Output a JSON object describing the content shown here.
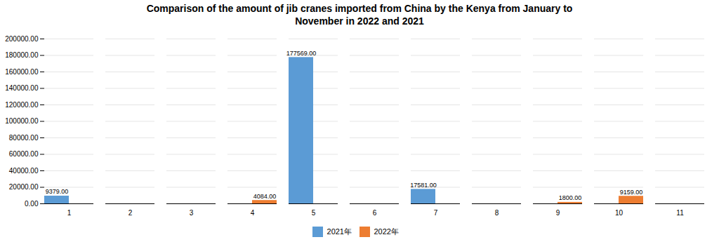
{
  "chart_data": {
    "type": "bar",
    "title": "Comparison of the amount of jib cranes imported from China by the Kenya from January to\nNovember in 2022 and 2021",
    "categories": [
      "1",
      "2",
      "3",
      "4",
      "5",
      "6",
      "7",
      "8",
      "9",
      "10",
      "11"
    ],
    "series": [
      {
        "name": "2021年",
        "color": "#5B9BD5",
        "values": [
          9379.0,
          0,
          0,
          0,
          177569.0,
          0,
          17581.0,
          0,
          0,
          0,
          0
        ],
        "value_labels": [
          "9379.00",
          null,
          null,
          null,
          "177569.00",
          null,
          "17581.00",
          null,
          null,
          null,
          null
        ]
      },
      {
        "name": "2022年",
        "color": "#ED7D31",
        "values": [
          0,
          0,
          0,
          4084.0,
          0,
          0,
          0,
          0,
          1800.0,
          9159.0,
          0
        ],
        "value_labels": [
          null,
          null,
          null,
          "4084.00",
          null,
          null,
          null,
          null,
          "1800.00",
          "9159.00",
          null
        ]
      }
    ],
    "ylim": [
      0,
      200000
    ],
    "yticks": [
      {
        "value": 0,
        "label": "0.00"
      },
      {
        "value": 20000,
        "label": "20000.00"
      },
      {
        "value": 40000,
        "label": "40000.00"
      },
      {
        "value": 60000,
        "label": "60000.00"
      },
      {
        "value": 80000,
        "label": "80000.00"
      },
      {
        "value": 100000,
        "label": "100000.00"
      },
      {
        "value": 120000,
        "label": "120000.00"
      },
      {
        "value": 140000,
        "label": "140000.00"
      },
      {
        "value": 160000,
        "label": "160000.00"
      },
      {
        "value": 180000,
        "label": "180000.00"
      },
      {
        "value": 200000,
        "label": "200000.00"
      }
    ],
    "grid": true,
    "legend": "bottom",
    "data_labels": true
  }
}
